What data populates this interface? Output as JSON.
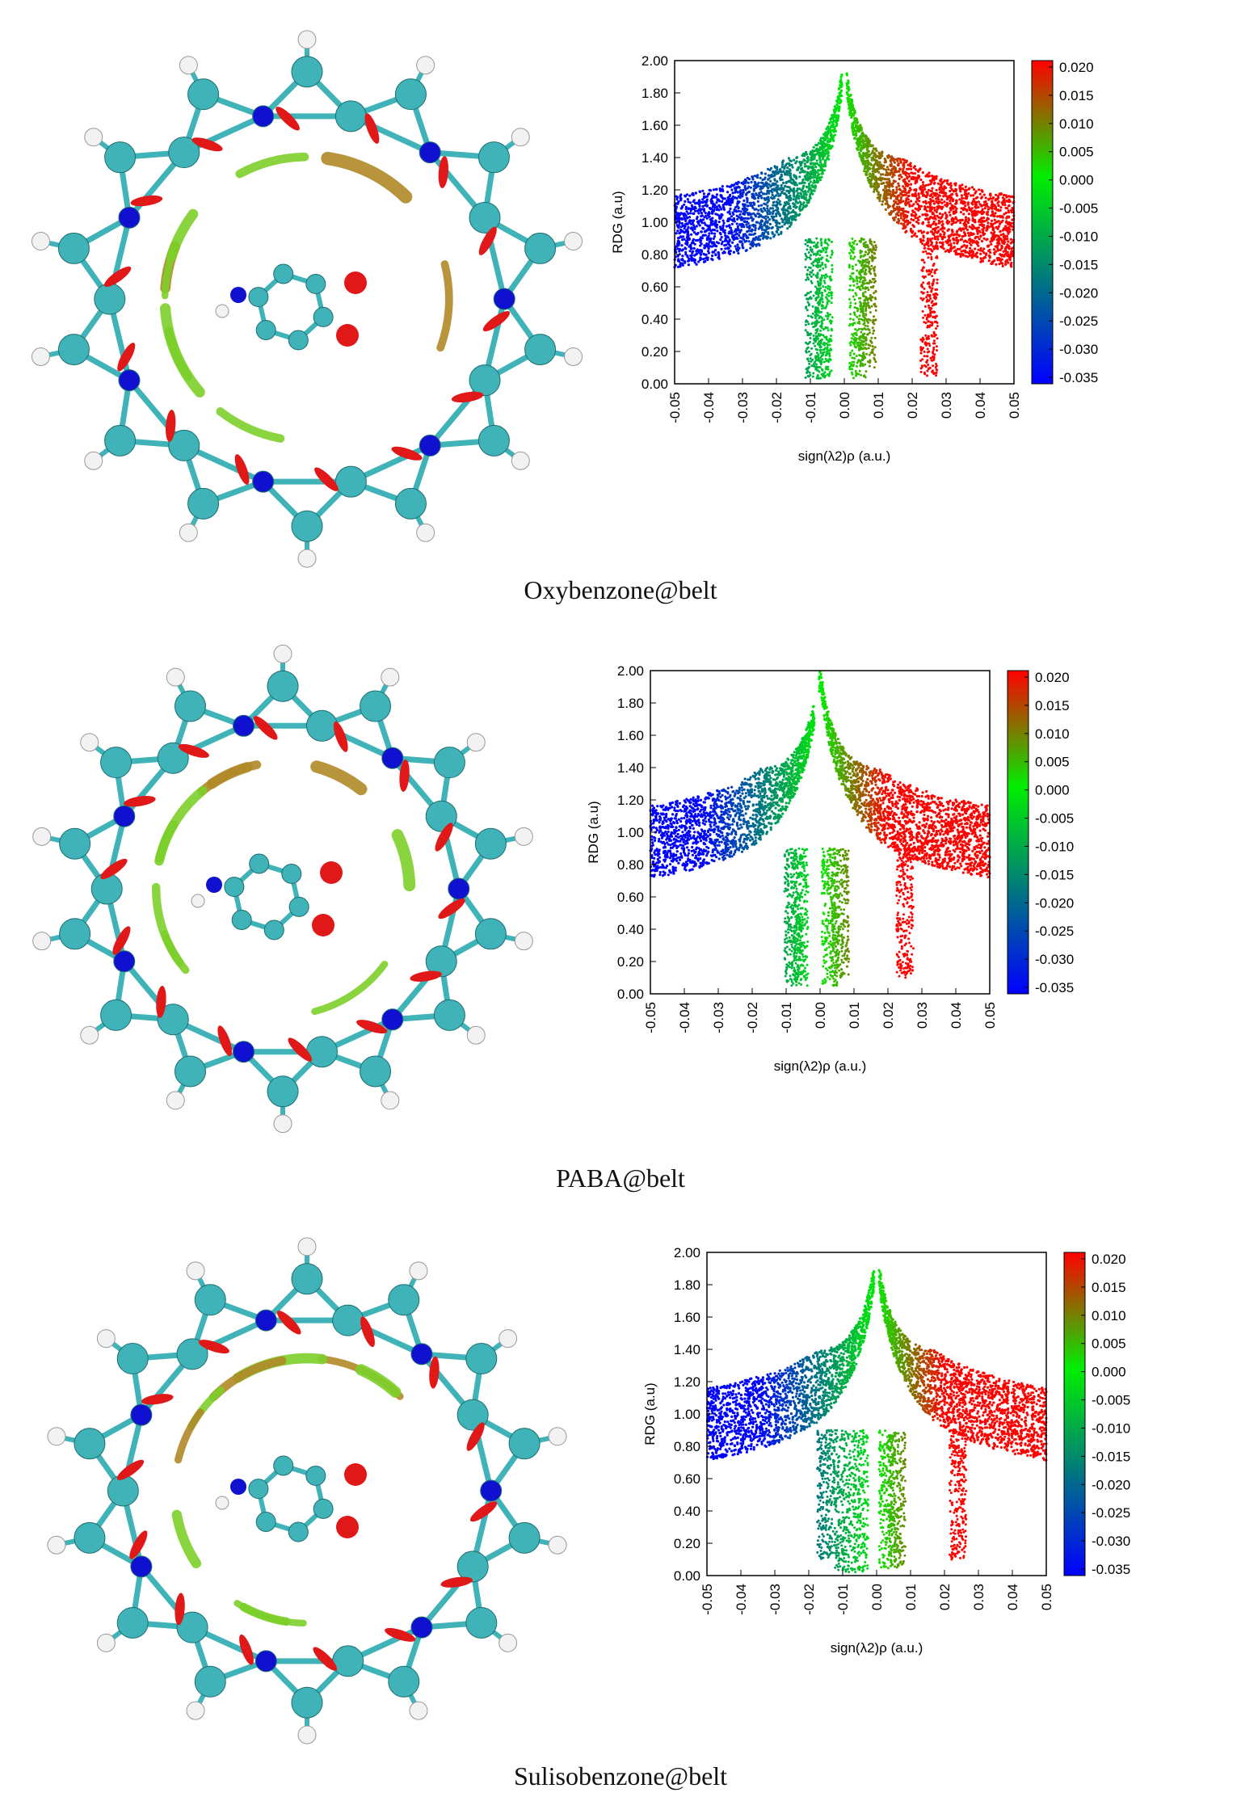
{
  "colors": {
    "carbon": "#3fb3b8",
    "nitrogen": "#1010d0",
    "hydrogen": "#f2f2f2",
    "oxygen": "#e01818",
    "sulfur": "#e0d020",
    "attractive": "#0000ff",
    "vdw": "#00ee00",
    "repulsive": "#ff0000",
    "isosurface_green": "#7ccf2a",
    "isosurface_brown": "#b08a28"
  },
  "panels": [
    {
      "caption": "Oxybenzone@belt",
      "molecule_icon": "molecular-belt-with-oxybenzone-icon",
      "chart_data": {
        "type": "scatter",
        "title": "",
        "xlabel": "sign(λ2)ρ (a.u.)",
        "ylabel": "RDG (a.u)",
        "xlim": [
          -0.05,
          0.05
        ],
        "ylim": [
          0.0,
          2.0
        ],
        "xticks": [
          "-0.05",
          "-0.04",
          "-0.03",
          "-0.02",
          "-0.01",
          "0.00",
          "0.01",
          "0.02",
          "0.03",
          "0.04",
          "0.05"
        ],
        "yticks": [
          "0.00",
          "0.20",
          "0.40",
          "0.60",
          "0.80",
          "1.00",
          "1.20",
          "1.40",
          "1.60",
          "1.80",
          "2.00"
        ],
        "colorbar": {
          "range": [
            -0.035,
            0.02
          ],
          "ticks": [
            "0.020",
            "0.015",
            "0.010",
            "0.005",
            "0.000",
            "-0.005",
            "-0.010",
            "-0.015",
            "-0.020",
            "-0.025",
            "-0.030",
            "-0.035"
          ]
        },
        "spikes": [
          {
            "x": -0.009,
            "min_rdg": 0.03
          },
          {
            "x": -0.006,
            "min_rdg": 0.03
          },
          {
            "x": 0.004,
            "min_rdg": 0.03
          },
          {
            "x": 0.007,
            "min_rdg": 0.1
          },
          {
            "x": 0.025,
            "min_rdg": 0.05
          }
        ],
        "gap_x": 0.0
      }
    },
    {
      "caption": "PABA@belt",
      "molecule_icon": "molecular-belt-with-paba-icon",
      "chart_data": {
        "type": "scatter",
        "title": "",
        "xlabel": "sign(λ2)ρ (a.u.)",
        "ylabel": "RDG (a.u)",
        "xlim": [
          -0.05,
          0.05
        ],
        "ylim": [
          0.0,
          2.0
        ],
        "xticks": [
          "-0.05",
          "-0.04",
          "-0.03",
          "-0.02",
          "-0.01",
          "0.00",
          "0.01",
          "0.02",
          "0.03",
          "0.04",
          "0.05"
        ],
        "yticks": [
          "0.00",
          "0.20",
          "0.40",
          "0.60",
          "0.80",
          "1.00",
          "1.20",
          "1.40",
          "1.60",
          "1.80",
          "2.00"
        ],
        "colorbar": {
          "range": [
            -0.035,
            0.02
          ],
          "ticks": [
            "0.020",
            "0.015",
            "0.010",
            "0.005",
            "0.000",
            "-0.005",
            "-0.010",
            "-0.015",
            "-0.020",
            "-0.025",
            "-0.030",
            "-0.035"
          ]
        },
        "spikes": [
          {
            "x": -0.008,
            "min_rdg": 0.05
          },
          {
            "x": -0.006,
            "min_rdg": 0.05
          },
          {
            "x": 0.003,
            "min_rdg": 0.05
          },
          {
            "x": 0.006,
            "min_rdg": 0.1
          },
          {
            "x": 0.025,
            "min_rdg": 0.1
          }
        ],
        "gap_x": -0.001
      }
    },
    {
      "caption": "Sulisobenzone@belt",
      "molecule_icon": "molecular-belt-with-sulisobenzone-icon",
      "chart_data": {
        "type": "scatter",
        "title": "",
        "xlabel": "sign(λ2)ρ (a.u.)",
        "ylabel": "RDG (a.u)",
        "xlim": [
          -0.05,
          0.05
        ],
        "ylim": [
          0.0,
          2.0
        ],
        "xticks": [
          "-0.05",
          "-0.04",
          "-0.03",
          "-0.02",
          "-0.01",
          "0.00",
          "0.01",
          "0.02",
          "0.03",
          "0.04",
          "0.05"
        ],
        "yticks": [
          "0.00",
          "0.20",
          "0.40",
          "0.60",
          "0.80",
          "1.00",
          "1.20",
          "1.40",
          "1.60",
          "1.80",
          "2.00"
        ],
        "colorbar": {
          "range": [
            -0.035,
            0.02
          ],
          "ticks": [
            "0.020",
            "0.015",
            "0.010",
            "0.005",
            "0.000",
            "-0.005",
            "-0.010",
            "-0.015",
            "-0.020",
            "-0.025",
            "-0.030",
            "-0.035"
          ]
        },
        "spikes": [
          {
            "x": -0.015,
            "min_rdg": 0.1
          },
          {
            "x": -0.01,
            "min_rdg": 0.02
          },
          {
            "x": -0.005,
            "min_rdg": 0.02
          },
          {
            "x": 0.003,
            "min_rdg": 0.03
          },
          {
            "x": 0.006,
            "min_rdg": 0.05
          },
          {
            "x": 0.024,
            "min_rdg": 0.1
          }
        ],
        "gap_x": 0.0
      }
    }
  ]
}
